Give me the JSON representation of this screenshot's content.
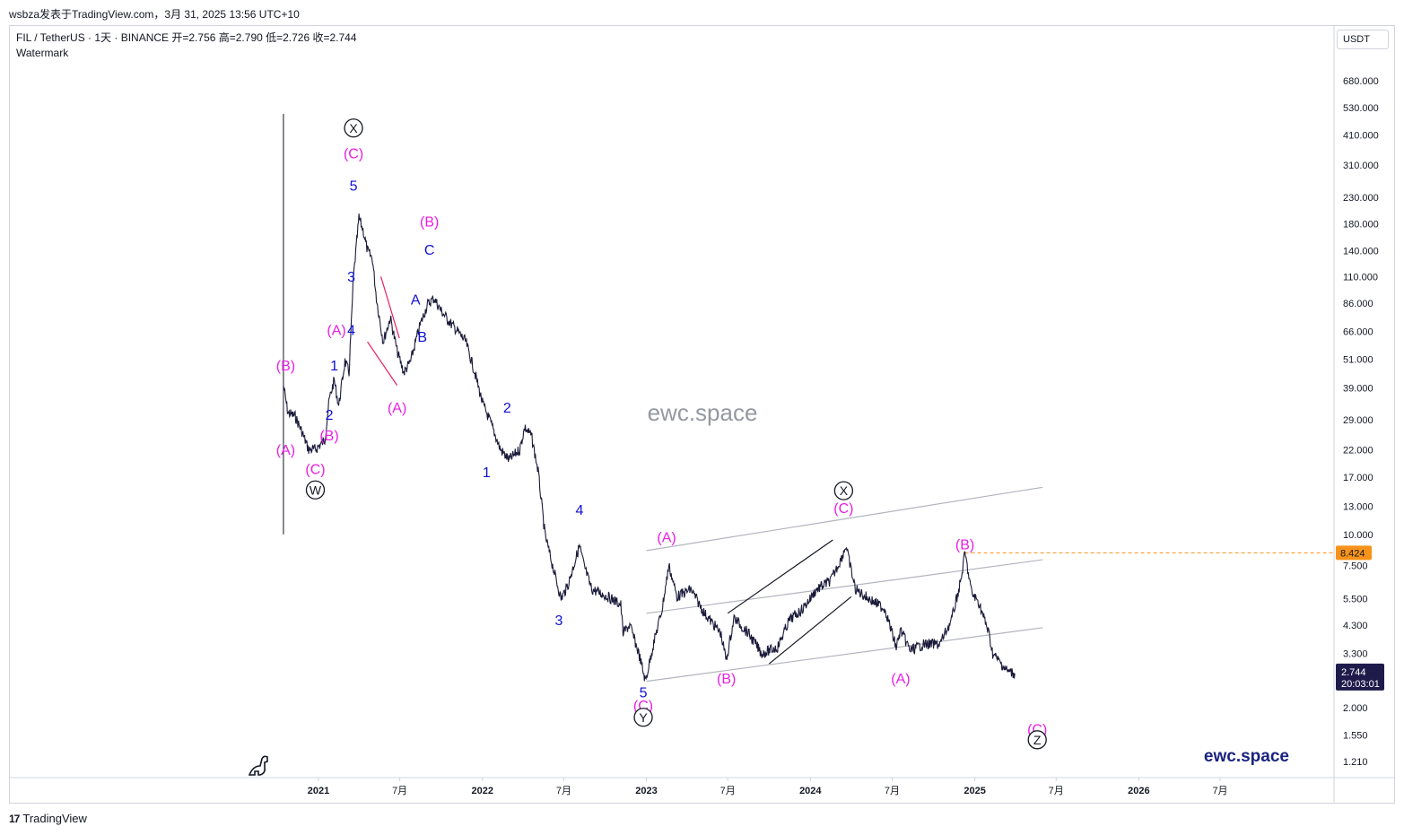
{
  "caption": "wsbza发表于TradingView.com，3月 31, 2025 13:56 UTC+10",
  "legend": {
    "symbol_line": "FIL / TetherUS · 1天 · BINANCE  开=2.756  高=2.790  低=2.726  收=2.744",
    "indicator": "Watermark"
  },
  "currency_button": "USDT",
  "watermark_text": "ewc.space",
  "brand_text": "ewc.space",
  "footer_logo": "TradingView",
  "footer_mark": "17",
  "colors": {
    "magenta": "#e91ee3",
    "blue": "#1010d8",
    "price": "#1a1a3a",
    "last": "#1e1b4b",
    "ref": "#f7931a",
    "channel": "#b2b5be"
  },
  "chart_data": {
    "type": "line",
    "scale": "log",
    "ylim": [
      1.1,
      1000
    ],
    "y_ticks": [
      "680.000",
      "530.000",
      "410.000",
      "310.000",
      "230.000",
      "180.000",
      "140.000",
      "110.000",
      "86.000",
      "66.000",
      "51.000",
      "39.000",
      "29.000",
      "22.000",
      "17.000",
      "13.000",
      "10.000",
      "7.500",
      "5.500",
      "4.300",
      "3.300",
      "2.000",
      "1.550",
      "1.210"
    ],
    "x_ticks": [
      {
        "t": "2021-01-01",
        "label": "2021",
        "year": true
      },
      {
        "t": "2021-07-01",
        "label": "7月",
        "year": false
      },
      {
        "t": "2022-01-01",
        "label": "2022",
        "year": true
      },
      {
        "t": "2022-07-01",
        "label": "7月",
        "year": false
      },
      {
        "t": "2023-01-01",
        "label": "2023",
        "year": true
      },
      {
        "t": "2023-07-01",
        "label": "7月",
        "year": false
      },
      {
        "t": "2024-01-01",
        "label": "2024",
        "year": true
      },
      {
        "t": "2024-07-01",
        "label": "7月",
        "year": false
      },
      {
        "t": "2025-01-01",
        "label": "2025",
        "year": true
      },
      {
        "t": "2025-07-01",
        "label": "7月",
        "year": false
      },
      {
        "t": "2026-01-01",
        "label": "2026",
        "year": true
      },
      {
        "t": "2026-07-01",
        "label": "7月",
        "year": false
      }
    ],
    "price_series": [
      [
        "2020-10-15",
        40
      ],
      [
        "2020-10-25",
        31
      ],
      [
        "2020-11-10",
        30
      ],
      [
        "2020-11-25",
        26
      ],
      [
        "2020-12-10",
        22
      ],
      [
        "2020-12-25",
        22
      ],
      [
        "2021-01-15",
        24
      ],
      [
        "2021-01-25",
        35
      ],
      [
        "2021-02-05",
        42
      ],
      [
        "2021-02-15",
        33
      ],
      [
        "2021-03-01",
        50
      ],
      [
        "2021-03-10",
        45
      ],
      [
        "2021-03-20",
        110
      ],
      [
        "2021-04-01",
        190
      ],
      [
        "2021-04-10",
        170
      ],
      [
        "2021-04-20",
        140
      ],
      [
        "2021-05-01",
        130
      ],
      [
        "2021-05-10",
        90
      ],
      [
        "2021-05-25",
        60
      ],
      [
        "2021-06-10",
        75
      ],
      [
        "2021-06-25",
        55
      ],
      [
        "2021-07-10",
        45
      ],
      [
        "2021-07-25",
        50
      ],
      [
        "2021-08-15",
        70
      ],
      [
        "2021-09-01",
        85
      ],
      [
        "2021-09-15",
        90
      ],
      [
        "2021-10-01",
        80
      ],
      [
        "2021-10-20",
        72
      ],
      [
        "2021-11-10",
        65
      ],
      [
        "2021-11-25",
        60
      ],
      [
        "2021-12-15",
        45
      ],
      [
        "2022-01-01",
        34
      ],
      [
        "2022-01-20",
        28
      ],
      [
        "2022-02-10",
        22
      ],
      [
        "2022-03-01",
        20
      ],
      [
        "2022-03-25",
        22
      ],
      [
        "2022-04-05",
        27
      ],
      [
        "2022-04-20",
        25
      ],
      [
        "2022-05-05",
        18
      ],
      [
        "2022-05-20",
        10
      ],
      [
        "2022-06-10",
        7
      ],
      [
        "2022-06-25",
        5.5
      ],
      [
        "2022-07-10",
        6.2
      ],
      [
        "2022-08-05",
        9
      ],
      [
        "2022-08-15",
        7.5
      ],
      [
        "2022-09-01",
        6
      ],
      [
        "2022-09-20",
        5.8
      ],
      [
        "2022-10-15",
        5.5
      ],
      [
        "2022-11-05",
        5.2
      ],
      [
        "2022-11-10",
        4
      ],
      [
        "2022-11-25",
        4.3
      ],
      [
        "2022-12-15",
        3.3
      ],
      [
        "2022-12-30",
        2.55
      ],
      [
        "2023-01-15",
        3.5
      ],
      [
        "2023-02-05",
        5
      ],
      [
        "2023-02-20",
        7.5
      ],
      [
        "2023-03-10",
        5.6
      ],
      [
        "2023-04-10",
        6
      ],
      [
        "2023-05-10",
        4.8
      ],
      [
        "2023-06-15",
        4
      ],
      [
        "2023-06-28",
        3.1
      ],
      [
        "2023-07-15",
        4.6
      ],
      [
        "2023-08-15",
        4
      ],
      [
        "2023-09-15",
        3.3
      ],
      [
        "2023-10-20",
        3.5
      ],
      [
        "2023-11-15",
        4.5
      ],
      [
        "2023-12-15",
        5
      ],
      [
        "2024-01-15",
        6
      ],
      [
        "2024-02-15",
        6.5
      ],
      [
        "2024-03-10",
        8
      ],
      [
        "2024-03-20",
        9
      ],
      [
        "2024-04-10",
        6
      ],
      [
        "2024-05-10",
        5.5
      ],
      [
        "2024-06-15",
        5
      ],
      [
        "2024-07-10",
        3.5
      ],
      [
        "2024-07-20",
        4.1
      ],
      [
        "2024-08-10",
        3.4
      ],
      [
        "2024-09-10",
        3.6
      ],
      [
        "2024-10-15",
        3.6
      ],
      [
        "2024-11-10",
        4.5
      ],
      [
        "2024-12-01",
        6.5
      ],
      [
        "2024-12-10",
        8.4
      ],
      [
        "2024-12-25",
        5.8
      ],
      [
        "2025-01-10",
        5.3
      ],
      [
        "2025-02-01",
        4
      ],
      [
        "2025-02-10",
        3.3
      ],
      [
        "2025-03-01",
        3
      ],
      [
        "2025-03-15",
        2.8
      ],
      [
        "2025-03-31",
        2.744
      ]
    ],
    "last_price": "2.744",
    "countdown": "20:03:01",
    "ref_price": "8.424",
    "ref_line_from": "2024-12-10",
    "channel_lines": [
      {
        "from": [
          "2023-01-01",
          2.55
        ],
        "to": [
          "2025-06-01",
          4.2
        ]
      },
      {
        "from": [
          "2023-01-01",
          4.8
        ],
        "to": [
          "2025-06-01",
          7.9
        ]
      },
      {
        "from": [
          "2023-01-01",
          8.6
        ],
        "to": [
          "2025-06-01",
          15.5
        ]
      }
    ],
    "pattern_lines": [
      {
        "from": [
          "2023-07-01",
          4.8
        ],
        "to": [
          "2024-02-20",
          9.5
        ],
        "color": "#131722"
      },
      {
        "from": [
          "2023-10-01",
          3.0
        ],
        "to": [
          "2024-04-01",
          5.6
        ],
        "color": "#131722"
      },
      {
        "from": [
          "2021-05-20",
          110
        ],
        "to": [
          "2021-06-30",
          62
        ],
        "color": "#e91e63"
      },
      {
        "from": [
          "2021-04-20",
          60
        ],
        "to": [
          "2021-06-25",
          40
        ],
        "color": "#e91e63"
      }
    ],
    "vline": {
      "t": "2020-10-15",
      "top": 500,
      "bottom": 10
    },
    "wave_labels": [
      {
        "t": "2020-10-20",
        "p": 21,
        "text": "(A)",
        "c": "m"
      },
      {
        "t": "2020-10-20",
        "p": 46,
        "text": "(B)",
        "c": "m"
      },
      {
        "t": "2020-12-25",
        "p": 17.5,
        "text": "(C)",
        "c": "m"
      },
      {
        "t": "2020-12-25",
        "p": 14.5,
        "text": "W",
        "c": "k",
        "circle": true
      },
      {
        "t": "2021-01-25",
        "p": 24,
        "text": "(B)",
        "c": "m"
      },
      {
        "t": "2021-01-25",
        "p": 29,
        "text": "2",
        "c": "b"
      },
      {
        "t": "2021-02-05",
        "p": 46,
        "text": "1",
        "c": "b"
      },
      {
        "t": "2021-02-10",
        "p": 64,
        "text": "(A)",
        "c": "m"
      },
      {
        "t": "2021-03-15",
        "p": 64,
        "text": "4",
        "c": "b"
      },
      {
        "t": "2021-03-15",
        "p": 105,
        "text": "3",
        "c": "b"
      },
      {
        "t": "2021-03-20",
        "p": 245,
        "text": "5",
        "c": "b"
      },
      {
        "t": "2021-03-20",
        "p": 330,
        "text": "(C)",
        "c": "m"
      },
      {
        "t": "2021-03-20",
        "p": 420,
        "text": "X",
        "c": "k",
        "circle": true
      },
      {
        "t": "2021-06-25",
        "p": 31,
        "text": "(A)",
        "c": "m"
      },
      {
        "t": "2021-08-05",
        "p": 85,
        "text": "A",
        "c": "b"
      },
      {
        "t": "2021-08-20",
        "p": 60,
        "text": "B",
        "c": "b"
      },
      {
        "t": "2021-09-05",
        "p": 135,
        "text": "C",
        "c": "b"
      },
      {
        "t": "2021-09-05",
        "p": 175,
        "text": "(B)",
        "c": "m"
      },
      {
        "t": "2022-02-25",
        "p": 31,
        "text": "2",
        "c": "b"
      },
      {
        "t": "2022-01-10",
        "p": 17,
        "text": "1",
        "c": "b"
      },
      {
        "t": "2022-08-05",
        "p": 12,
        "text": "4",
        "c": "b"
      },
      {
        "t": "2022-06-20",
        "p": 4.3,
        "text": "3",
        "c": "b"
      },
      {
        "t": "2022-12-25",
        "p": 2.2,
        "text": "5",
        "c": "b"
      },
      {
        "t": "2022-12-25",
        "p": 1.95,
        "text": "(C)",
        "c": "m"
      },
      {
        "t": "2022-12-25",
        "p": 1.75,
        "text": "Y",
        "c": "k",
        "circle": true
      },
      {
        "t": "2023-02-15",
        "p": 9.3,
        "text": "(A)",
        "c": "m"
      },
      {
        "t": "2023-06-28",
        "p": 2.5,
        "text": "(B)",
        "c": "m"
      },
      {
        "t": "2024-03-15",
        "p": 12.2,
        "text": "(C)",
        "c": "m"
      },
      {
        "t": "2024-03-15",
        "p": 14.4,
        "text": "X",
        "c": "k",
        "circle": true
      },
      {
        "t": "2024-07-20",
        "p": 2.5,
        "text": "(A)",
        "c": "m"
      },
      {
        "t": "2024-12-10",
        "p": 8.7,
        "text": "(B)",
        "c": "m"
      },
      {
        "t": "2025-05-20",
        "p": 1.56,
        "text": "(C)",
        "c": "m"
      },
      {
        "t": "2025-05-20",
        "p": 1.42,
        "text": "Z",
        "c": "k",
        "circle": true
      }
    ]
  }
}
